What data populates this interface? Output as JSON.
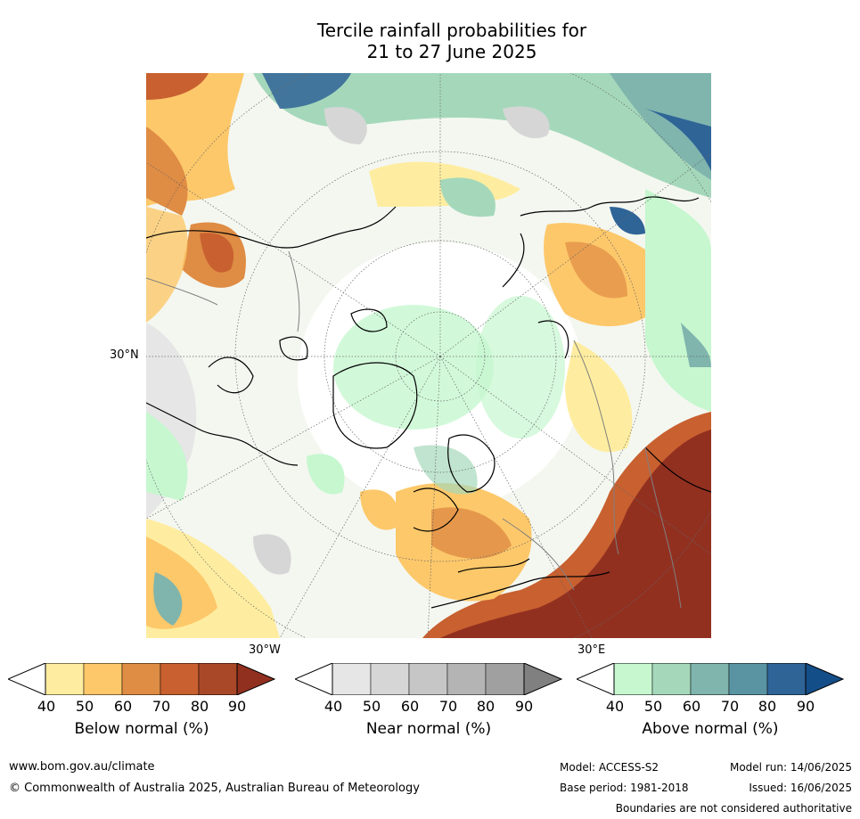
{
  "title_line1": "Tercile rainfall probabilities for",
  "title_line2": "21 to 27 June 2025",
  "map": {
    "lat_label": "30°N",
    "lon_label_left": "30°W",
    "lon_label_right": "30°E"
  },
  "colorbars": [
    {
      "label": "Below normal (%)",
      "ticks": [
        "40",
        "50",
        "60",
        "70",
        "80",
        "90"
      ],
      "colors": [
        "#ffffff",
        "#feeda0",
        "#fdc86a",
        "#df8c44",
        "#c86030",
        "#a84828",
        "#923020"
      ]
    },
    {
      "label": "Near normal (%)",
      "ticks": [
        "40",
        "50",
        "60",
        "70",
        "80",
        "90"
      ],
      "colors": [
        "#ffffff",
        "#e6e6e6",
        "#d6d6d6",
        "#c6c6c6",
        "#b4b4b4",
        "#a0a0a0",
        "#808080"
      ]
    },
    {
      "label": "Above normal (%)",
      "ticks": [
        "40",
        "50",
        "60",
        "70",
        "80",
        "90"
      ],
      "colors": [
        "#ffffff",
        "#c6f7cf",
        "#a5d8bb",
        "#7fb5ad",
        "#5a94a2",
        "#2f6497",
        "#144e88"
      ]
    }
  ],
  "footer": {
    "website": "www.bom.gov.au/climate",
    "copyright": "© Commonwealth of Australia 2025, Australian Bureau of Meteorology",
    "model": "Model: ACCESS-S2",
    "model_run": "Model run: 14/06/2025",
    "base_period": "Base period: 1981-2018",
    "issued": "Issued: 16/06/2025",
    "boundaries_note": "Boundaries are not considered authoritative"
  }
}
